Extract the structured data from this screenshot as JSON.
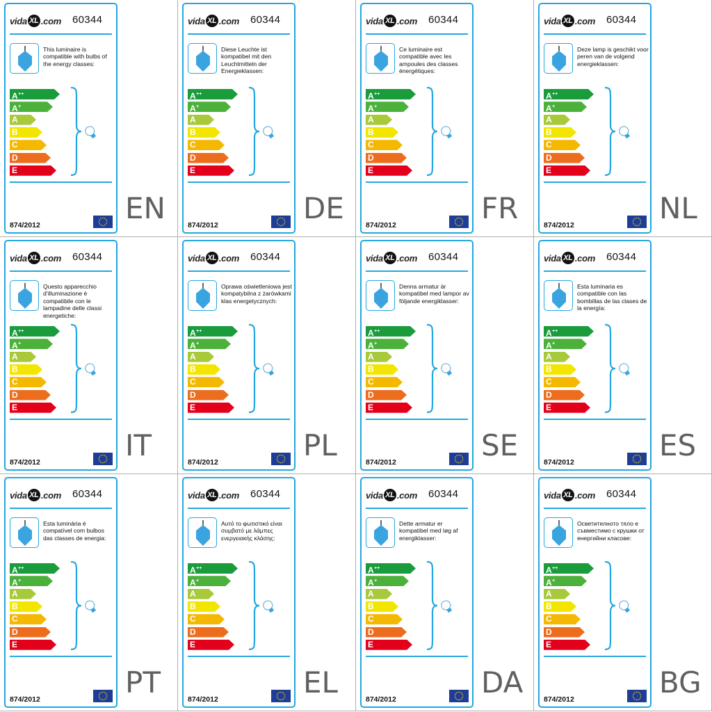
{
  "layout": {
    "cols": 4,
    "rows": 3
  },
  "colors": {
    "accent_border": "#22a7e0",
    "lamp_blue": "#3aa4e0",
    "eu_blue": "#1e3d96",
    "eu_star": "#ffd200",
    "class_colors": [
      "#1a9b3c",
      "#4bb13a",
      "#a8c93a",
      "#f2e600",
      "#f5b800",
      "#ec6d1d",
      "#e3001b"
    ]
  },
  "icons": {
    "lamp": "pendant-lamp-icon",
    "brace": "curly-brace-icon",
    "bulb": "light-bulb-icon",
    "flag": "eu-flag-icon"
  },
  "common": {
    "logo_prefix": "vida",
    "logo_badge": "XL",
    "logo_suffix": ".com",
    "model_number": "60344",
    "regulation": "874/2012"
  },
  "energy_classes": [
    {
      "letter": "A",
      "sup": "++"
    },
    {
      "letter": "A",
      "sup": "+"
    },
    {
      "letter": "A",
      "sup": ""
    },
    {
      "letter": "B",
      "sup": ""
    },
    {
      "letter": "C",
      "sup": ""
    },
    {
      "letter": "D",
      "sup": ""
    },
    {
      "letter": "E",
      "sup": ""
    }
  ],
  "labels": [
    {
      "code": "EN",
      "text": "This luminaire is compatible with bulbs of the energy classes:"
    },
    {
      "code": "DE",
      "text": "Diese Leuchte ist kompatibel mit den Leuchtmitteln der Energieklassen:"
    },
    {
      "code": "FR",
      "text": "Ce luminaire est compatible avec les ampoules des classes énergétiques:"
    },
    {
      "code": "NL",
      "text": "Deze lamp is geschikt voor peren van de volgend energieklassen:"
    },
    {
      "code": "IT",
      "text": "Questo apparecchio d'illuminazione è compatibile con le lampadine delle classi energetiche:"
    },
    {
      "code": "PL",
      "text": "Oprawa oświetleniowa jest kompatybilna z żarówkami klas energetycznych:"
    },
    {
      "code": "SE",
      "text": "Denna armatur är kompatibel med lampor av följande energiklasser:"
    },
    {
      "code": "ES",
      "text": "Esta luminaria es compatible con las bombillas de las clases de la energía:"
    },
    {
      "code": "PT",
      "text": "Esta luminária é compatível com bulbos das classes de energia:"
    },
    {
      "code": "EL",
      "text": "Αυτό το φωτιστικό είναι συμβατό με λάμπες ενεργειακής κλάσης:"
    },
    {
      "code": "DA",
      "text": "Dette armatur er kompatibel med løg af energiklasser:"
    },
    {
      "code": "BG",
      "text": "Осветителното тяло е съвместимо с крушки от енергийни класове:"
    }
  ]
}
